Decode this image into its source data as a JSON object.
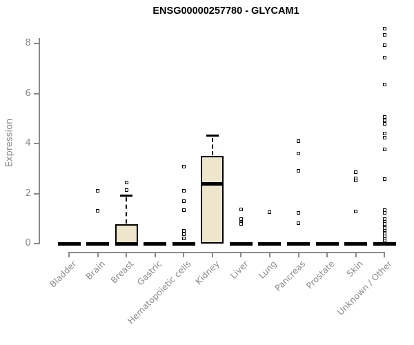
{
  "chart_data": {
    "type": "boxplot",
    "title": "ENSG00000257780 - GLYCAM1",
    "xlabel": "",
    "ylabel": "Expression",
    "ylim": [
      0,
      8.8
    ],
    "yticks": [
      0,
      2,
      4,
      6,
      8
    ],
    "grid": false,
    "legend": "none",
    "categories": [
      "Bladder",
      "Brain",
      "Breast",
      "Gastric",
      "Hematopoietic cells",
      "Kidney",
      "Liver",
      "Lung",
      "Pancreas",
      "Prostate",
      "Skin",
      "Unknown / Other"
    ],
    "series": [
      {
        "category": "Bladder",
        "whisker_low": 0,
        "q1": 0,
        "median": 0,
        "q3": 0,
        "whisker_high": 0,
        "outliers": []
      },
      {
        "category": "Brain",
        "whisker_low": 0,
        "q1": 0,
        "median": 0,
        "q3": 0,
        "whisker_high": 0,
        "outliers": [
          2.1,
          1.3
        ]
      },
      {
        "category": "Breast",
        "whisker_low": 0,
        "q1": 0,
        "median": 0,
        "q3": 0.78,
        "whisker_high": 1.93,
        "outliers": [
          2.45,
          2.15
        ]
      },
      {
        "category": "Gastric",
        "whisker_low": 0,
        "q1": 0,
        "median": 0,
        "q3": 0,
        "whisker_high": 0,
        "outliers": []
      },
      {
        "category": "Hematopoietic cells",
        "whisker_low": 0,
        "q1": 0,
        "median": 0,
        "q3": 0,
        "whisker_high": 0,
        "outliers": [
          3.07,
          2.11,
          1.69,
          1.33,
          0.5,
          0.36,
          0.22
        ]
      },
      {
        "category": "Kidney",
        "whisker_low": 0,
        "q1": 0,
        "median": 2.4,
        "q3": 3.5,
        "whisker_high": 4.32,
        "outliers": []
      },
      {
        "category": "Liver",
        "whisker_low": 0,
        "q1": 0,
        "median": 0,
        "q3": 0,
        "whisker_high": 0,
        "outliers": [
          1.37,
          0.97,
          0.85,
          0.78
        ]
      },
      {
        "category": "Lung",
        "whisker_low": 0,
        "q1": 0,
        "median": 0,
        "q3": 0,
        "whisker_high": 0,
        "outliers": [
          1.25
        ]
      },
      {
        "category": "Pancreas",
        "whisker_low": 0,
        "q1": 0,
        "median": 0,
        "q3": 0,
        "whisker_high": 0,
        "outliers": [
          4.09,
          3.61,
          2.92,
          1.23,
          0.82
        ]
      },
      {
        "category": "Prostate",
        "whisker_low": 0,
        "q1": 0,
        "median": 0,
        "q3": 0,
        "whisker_high": 0,
        "outliers": []
      },
      {
        "category": "Skin",
        "whisker_low": 0,
        "q1": 0,
        "median": 0,
        "q3": 0,
        "whisker_high": 0,
        "outliers": [
          2.85,
          2.62,
          2.54,
          1.28
        ]
      },
      {
        "category": "Unknown / Other",
        "whisker_low": 0,
        "q1": 0,
        "median": 0,
        "q3": 0,
        "whisker_high": 0,
        "outliers": [
          8.61,
          8.37,
          7.94,
          7.45,
          6.36,
          5.07,
          4.94,
          4.8,
          4.41,
          4.23,
          3.77,
          2.57,
          1.35,
          1.24,
          0.98,
          0.88,
          0.79,
          0.68,
          0.61,
          0.52,
          0.44,
          0.36,
          0.28,
          0.19,
          0.12
        ]
      }
    ],
    "colors": {
      "box_fill": "#EDE6CC",
      "box_border": "#000000",
      "median": "#000000",
      "outlier": "#000000",
      "axis": "#8A8A8A",
      "tick_label": "#8A8A8A",
      "title": "#000000",
      "background": "#FFFFFF"
    }
  }
}
